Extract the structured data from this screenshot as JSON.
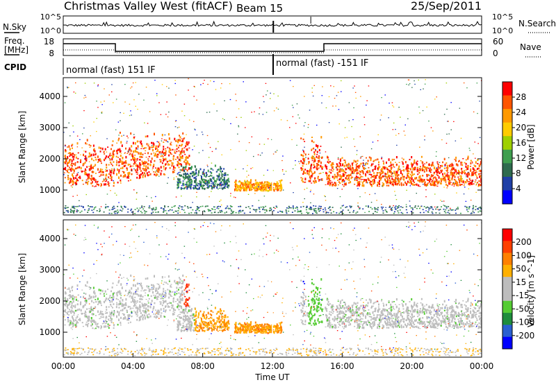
{
  "header": {
    "title": "Christmas Valley West (fitACF)",
    "beam": "Beam 15",
    "date": "25/Sep/2011"
  },
  "top_panels": {
    "nsky_label": "N.Sky",
    "nsearch_label": "N.Search",
    "nsky_ticks": [
      "10^5",
      "10^0"
    ],
    "nsearch_ticks": [
      "10^5",
      "10^0"
    ],
    "freq_label_1": "Freq.",
    "freq_label_2": "[MHz]",
    "freq_ticks": [
      "18",
      "8"
    ],
    "nave_label": "Nave",
    "nave_ticks": [
      "60",
      "0"
    ],
    "cpid_label": "CPID",
    "cpid_segments": [
      "normal (fast) 151 IF",
      "normal (fast) -151 IF"
    ]
  },
  "colors": {
    "power": [
      "#0000ff",
      "#1f3fa6",
      "#2e6b4e",
      "#3f9f4f",
      "#9fd000",
      "#ffcc00",
      "#ff9900",
      "#ff5500",
      "#ff0000"
    ],
    "velocity": [
      "#0000ff",
      "#2a5fd0",
      "#1e8c3c",
      "#55cc33",
      "#bdbdbd",
      "#bdbdbd",
      "#ffb000",
      "#ff8000",
      "#ff4000",
      "#ff0000"
    ]
  },
  "chart_data": [
    {
      "type": "heatmap",
      "panel": "power",
      "ylabel": "Slant Range [km]",
      "ylim": [
        200,
        4600
      ],
      "yticks": [
        "1000",
        "2000",
        "3000",
        "4000"
      ],
      "xlim": [
        "00:00",
        "24:00"
      ],
      "colorbar_label": "Power [dB]",
      "colorbar_ticks": [
        "4",
        "8",
        "12",
        "16",
        "20",
        "24",
        "28"
      ],
      "features": [
        {
          "t": [
            0,
            2.9
          ],
          "range": [
            1100,
            2700
          ],
          "level": "high"
        },
        {
          "t": [
            3,
            7.2
          ],
          "range": [
            1200,
            2900
          ],
          "level": "high"
        },
        {
          "t": [
            6.5,
            9.5
          ],
          "range": [
            1000,
            1800
          ],
          "level": "low"
        },
        {
          "t": [
            9.8,
            12.5
          ],
          "range": [
            950,
            1300
          ],
          "level": "medium"
        },
        {
          "t": [
            13.6,
            14.9
          ],
          "range": [
            1200,
            2800
          ],
          "level": "high"
        },
        {
          "t": [
            15,
            24
          ],
          "range": [
            1100,
            2100
          ],
          "level": "high"
        }
      ]
    },
    {
      "type": "heatmap",
      "panel": "velocity",
      "ylabel": "Slant Range [km]",
      "ylim": [
        200,
        4600
      ],
      "yticks": [
        "1000",
        "2000",
        "3000",
        "4000"
      ],
      "xlabel": "Time UT",
      "xticks": [
        "00:00",
        "04:00",
        "08:00",
        "12:00",
        "16:00",
        "20:00",
        "00:00"
      ],
      "colorbar_label": "Velocity [m s^-1]",
      "colorbar_ticks": [
        "200",
        "100",
        "50",
        "15",
        "-15",
        "-50",
        "-100",
        "-200"
      ]
    }
  ]
}
